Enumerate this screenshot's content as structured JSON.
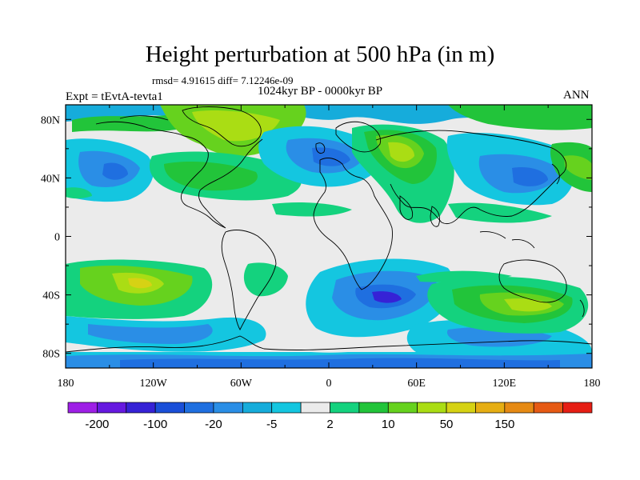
{
  "figure": {
    "title": "Height perturbation at 500 hPa (in m)",
    "stats_text": "rmsd= 4.91615 diff= 7.12246e-09",
    "period": "1024kyr BP - 0000kyr BP",
    "experiment": "Expt = tEvtA-tevta1",
    "season": "ANN"
  },
  "map": {
    "projection": "cylindrical equidistant",
    "lon_range": [
      -180,
      180
    ],
    "lat_range": [
      -90,
      90
    ],
    "lon_tick_labels": [
      "180",
      "120W",
      "60W",
      "0",
      "60E",
      "120E",
      "180"
    ],
    "lon_ticks": [
      -180,
      -120,
      -60,
      0,
      60,
      120,
      180
    ],
    "lat_tick_labels": [
      "80N",
      "40N",
      "0",
      "40S",
      "80S"
    ],
    "lat_ticks": [
      80,
      40,
      0,
      -40,
      -80
    ],
    "coastlines": true,
    "anomaly_regions": [
      {
        "name": "arctic-greenland-positive",
        "lon": -75,
        "lat": 75,
        "value": 15
      },
      {
        "name": "n-pacific-negative",
        "lon": -155,
        "lat": 45,
        "value": -10
      },
      {
        "name": "n-atlantic-positive",
        "lon": -105,
        "lat": 42,
        "value": 8
      },
      {
        "name": "europe-negative",
        "lon": -10,
        "lat": 55,
        "value": -10
      },
      {
        "name": "siberia-positive",
        "lon": 50,
        "lat": 58,
        "value": 25
      },
      {
        "name": "e-asia-negative",
        "lon": 130,
        "lat": 40,
        "value": -10
      },
      {
        "name": "s-pacific-positive",
        "lon": -140,
        "lat": -30,
        "value": 20
      },
      {
        "name": "southern-ocean-negative",
        "lon": 20,
        "lat": -45,
        "value": -10
      },
      {
        "name": "s-indian-positive",
        "lon": 150,
        "lat": -48,
        "value": 15
      }
    ]
  },
  "colorbar": {
    "labels": [
      "-200",
      "-100",
      "-20",
      "-5",
      "2",
      "10",
      "50",
      "150"
    ],
    "colors": [
      "#9e1fe6",
      "#6619e0",
      "#3622d6",
      "#1a4fd8",
      "#1f6fe0",
      "#2a8ee6",
      "#16acdb",
      "#14c6e0",
      "#ebebeb",
      "#14d27e",
      "#22c43a",
      "#66d21e",
      "#aadd14",
      "#d6d214",
      "#e6ae14",
      "#e68a14",
      "#e65a14",
      "#e61e14"
    ]
  }
}
